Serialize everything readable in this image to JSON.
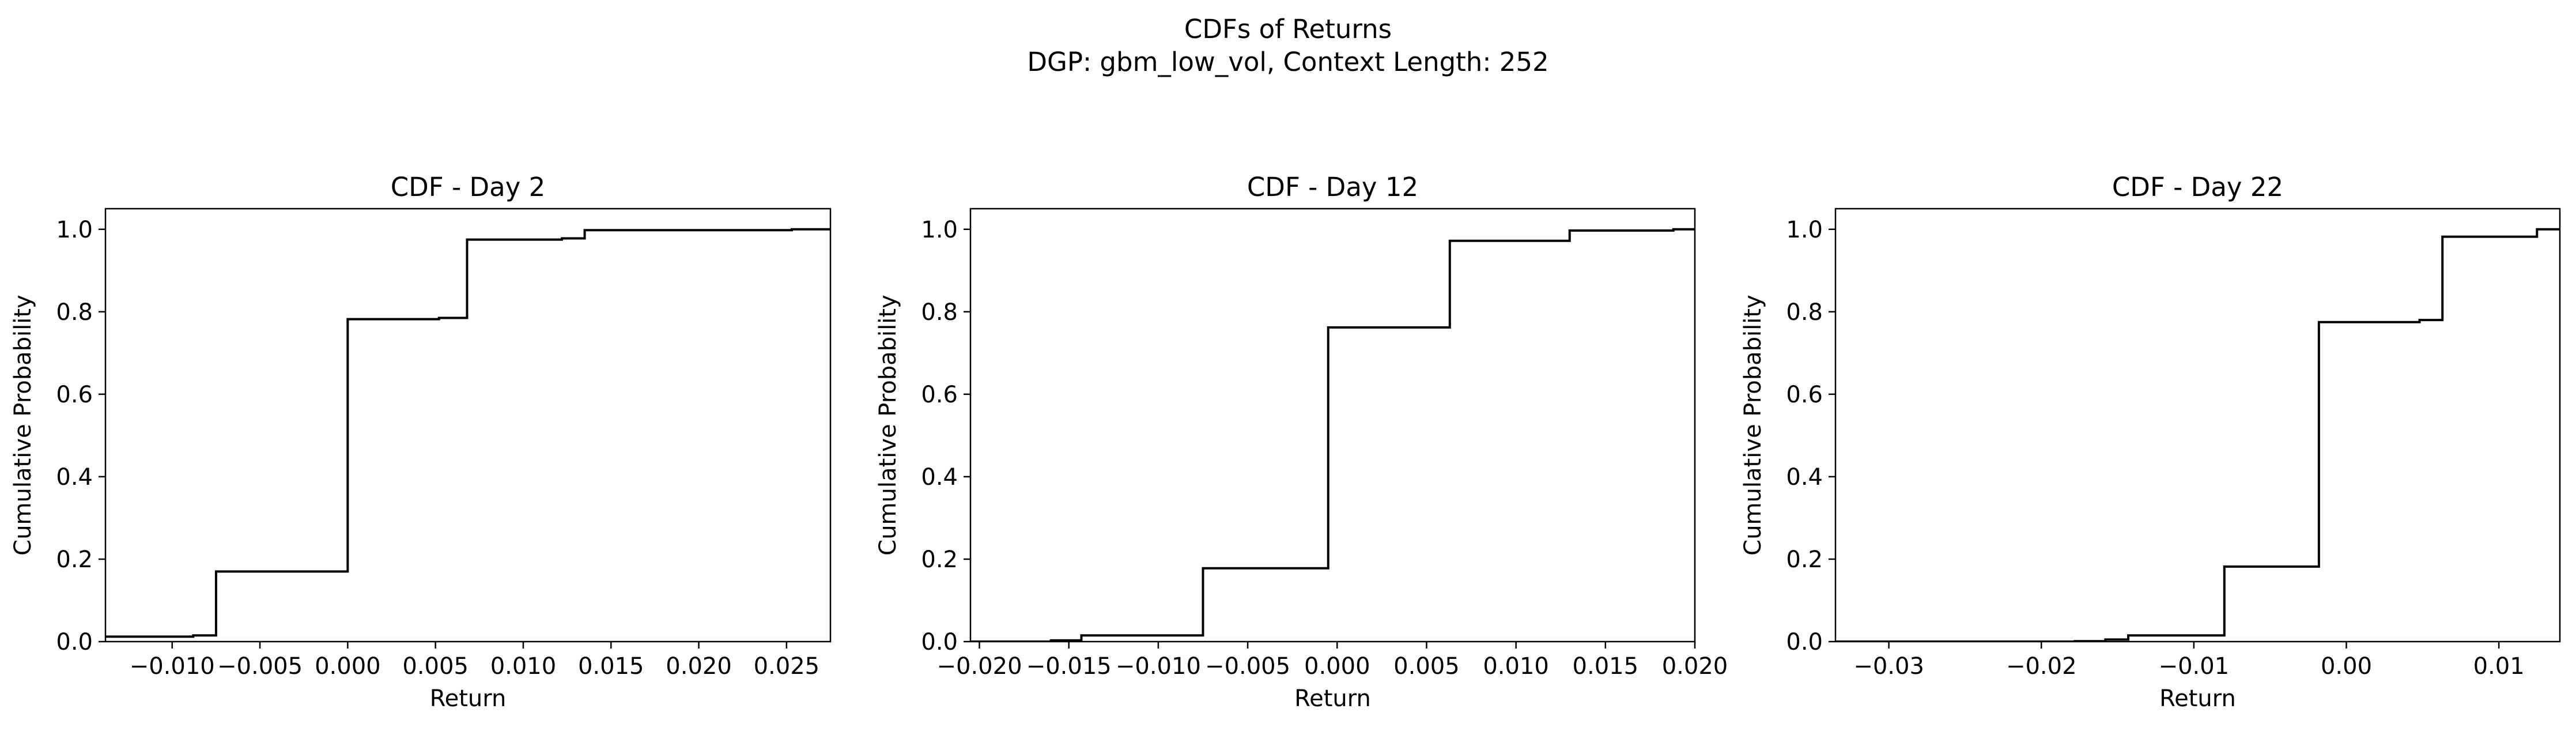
{
  "figure": {
    "title_line1": "CDFs of Returns",
    "title_line2": "DGP: gbm_low_vol, Context Length: 252"
  },
  "chart_data": [
    {
      "type": "line",
      "step": "post",
      "title": "CDF - Day 2",
      "xlabel": "Return",
      "ylabel": "Cumulative Probability",
      "xlim": [
        -0.0138,
        0.0275
      ],
      "ylim": [
        0.0,
        1.05
      ],
      "xticks": [
        -0.01,
        -0.005,
        0.0,
        0.005,
        0.01,
        0.015,
        0.02,
        0.025
      ],
      "xtick_labels": [
        "−0.010",
        "−0.005",
        "0.000",
        "0.005",
        "0.010",
        "0.015",
        "0.020",
        "0.025"
      ],
      "yticks": [
        0.0,
        0.2,
        0.4,
        0.6,
        0.8,
        1.0
      ],
      "ytick_labels": [
        "0.0",
        "0.2",
        "0.4",
        "0.6",
        "0.8",
        "1.0"
      ],
      "grid": false,
      "line_color": "#000000",
      "x": [
        -0.0138,
        -0.0088,
        -0.0075,
        0.0,
        0.0052,
        0.0068,
        0.0122,
        0.0135,
        0.0253,
        0.0275
      ],
      "y": [
        0.012,
        0.015,
        0.17,
        0.782,
        0.785,
        0.975,
        0.978,
        0.998,
        1.0,
        1.0
      ]
    },
    {
      "type": "line",
      "step": "post",
      "title": "CDF - Day 12",
      "xlabel": "Return",
      "ylabel": "Cumulative Probability",
      "xlim": [
        -0.0205,
        0.02
      ],
      "ylim": [
        0.0,
        1.05
      ],
      "xticks": [
        -0.02,
        -0.015,
        -0.01,
        -0.005,
        0.0,
        0.005,
        0.01,
        0.015,
        0.02
      ],
      "xtick_labels": [
        "−0.020",
        "−0.015",
        "−0.010",
        "−0.005",
        "0.000",
        "0.005",
        "0.010",
        "0.015",
        "0.020"
      ],
      "yticks": [
        0.0,
        0.2,
        0.4,
        0.6,
        0.8,
        1.0
      ],
      "ytick_labels": [
        "0.0",
        "0.2",
        "0.4",
        "0.6",
        "0.8",
        "1.0"
      ],
      "grid": false,
      "line_color": "#000000",
      "x": [
        -0.0205,
        -0.016,
        -0.0143,
        -0.0075,
        -0.0005,
        0.0063,
        0.013,
        0.0188,
        0.02
      ],
      "y": [
        0.0,
        0.003,
        0.015,
        0.178,
        0.762,
        0.972,
        0.997,
        1.0,
        1.0
      ]
    },
    {
      "type": "line",
      "step": "post",
      "title": "CDF - Day 22",
      "xlabel": "Return",
      "ylabel": "Cumulative Probability",
      "xlim": [
        -0.0335,
        0.014
      ],
      "ylim": [
        0.0,
        1.05
      ],
      "xticks": [
        -0.03,
        -0.02,
        -0.01,
        0.0,
        0.01
      ],
      "xtick_labels": [
        "−0.03",
        "−0.02",
        "−0.01",
        "0.00",
        "0.01"
      ],
      "yticks": [
        0.0,
        0.2,
        0.4,
        0.6,
        0.8,
        1.0
      ],
      "ytick_labels": [
        "0.0",
        "0.2",
        "0.4",
        "0.6",
        "0.8",
        "1.0"
      ],
      "grid": false,
      "line_color": "#000000",
      "x": [
        -0.0335,
        -0.0178,
        -0.0158,
        -0.0143,
        -0.008,
        -0.0018,
        0.0048,
        0.0063,
        0.0125,
        0.014
      ],
      "y": [
        0.0,
        0.001,
        0.005,
        0.015,
        0.182,
        0.775,
        0.78,
        0.982,
        1.0,
        1.0
      ]
    }
  ]
}
